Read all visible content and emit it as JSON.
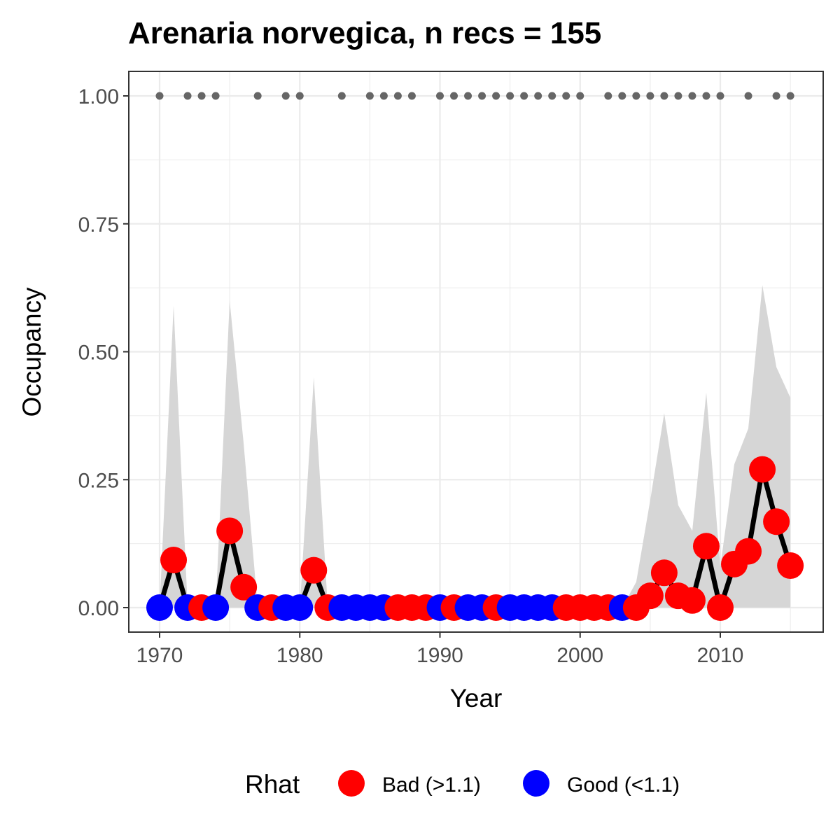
{
  "chart_data": {
    "type": "line",
    "title": "Arenaria norvegica, n recs = 155",
    "xlabel": "Year",
    "ylabel": "Occupancy",
    "xlim": [
      1968,
      2017
    ],
    "ylim": [
      -0.05,
      1.05
    ],
    "x_ticks": [
      1970,
      1980,
      1990,
      2000,
      2010
    ],
    "x_tick_labels": [
      "1970",
      "1980",
      "1990",
      "2000",
      "2010"
    ],
    "y_ticks": [
      0,
      0.25,
      0.5,
      0.75,
      1.0
    ],
    "y_tick_labels": [
      "0.00",
      "0.25",
      "0.50",
      "0.75",
      "1.00"
    ],
    "grid": true,
    "legend": {
      "title": "Rhat",
      "placement": "bottom",
      "entries": [
        {
          "label": "Bad (>1.1)",
          "color": "#ff0000"
        },
        {
          "label": "Good (<1.1)",
          "color": "#0000ff"
        }
      ]
    },
    "colors": {
      "bad": "#ff0000",
      "good": "#0000ff",
      "line": "#000000",
      "ribbon": "#d6d6d6",
      "record_dots": "#666666",
      "grid": "#ebebeb",
      "panel_border": "#333333"
    },
    "series": [
      {
        "x": [
          1970,
          1971,
          1972,
          1973,
          1974,
          1975,
          1976,
          1977,
          1978,
          1979,
          1980,
          1981,
          1982,
          1983,
          1984,
          1985,
          1986,
          1987,
          1988,
          1989,
          1990,
          1991,
          1992,
          1993,
          1994,
          1995,
          1996,
          1997,
          1998,
          1999,
          2000,
          2001,
          2002,
          2003,
          2004,
          2005,
          2006,
          2007,
          2008,
          2009,
          2010,
          2011,
          2012,
          2013,
          2014,
          2015
        ],
        "y": [
          0,
          0.093,
          0,
          0,
          0,
          0.15,
          0.04,
          0,
          0,
          0,
          0,
          0.073,
          0,
          0,
          0,
          0,
          0,
          0,
          0,
          0,
          0,
          0,
          0,
          0,
          0,
          0,
          0,
          0,
          0,
          0,
          0,
          0,
          0,
          0,
          0,
          0.023,
          0.068,
          0.023,
          0.014,
          0.12,
          0,
          0.085,
          0.11,
          0.27,
          0.168,
          0.082
        ],
        "rhat": [
          "Good",
          "Bad",
          "Good",
          "Bad",
          "Good",
          "Bad",
          "Bad",
          "Good",
          "Bad",
          "Good",
          "Good",
          "Bad",
          "Bad",
          "Good",
          "Good",
          "Good",
          "Good",
          "Bad",
          "Bad",
          "Bad",
          "Good",
          "Bad",
          "Good",
          "Good",
          "Bad",
          "Good",
          "Good",
          "Good",
          "Good",
          "Bad",
          "Bad",
          "Bad",
          "Bad",
          "Good",
          "Bad",
          "Bad",
          "Bad",
          "Bad",
          "Bad",
          "Bad",
          "Bad",
          "Bad",
          "Bad",
          "Bad",
          "Bad",
          "Bad"
        ],
        "upper": [
          0,
          0.59,
          0,
          0,
          0,
          0.6,
          0.32,
          0,
          0,
          0,
          0,
          0.45,
          0,
          0,
          0,
          0,
          0,
          0,
          0,
          0,
          0,
          0,
          0,
          0,
          0,
          0,
          0,
          0,
          0,
          0,
          0,
          0,
          0,
          0,
          0.05,
          0.21,
          0.38,
          0.2,
          0.15,
          0.42,
          0.08,
          0.28,
          0.35,
          0.63,
          0.47,
          0.41
        ]
      }
    ],
    "record_years": [
      1970,
      1972,
      1973,
      1974,
      1977,
      1979,
      1980,
      1983,
      1985,
      1986,
      1987,
      1988,
      1990,
      1991,
      1992,
      1993,
      1994,
      1995,
      1996,
      1997,
      1998,
      1999,
      2000,
      2002,
      2003,
      2004,
      2005,
      2006,
      2007,
      2008,
      2009,
      2010,
      2012,
      2014,
      2015
    ]
  }
}
